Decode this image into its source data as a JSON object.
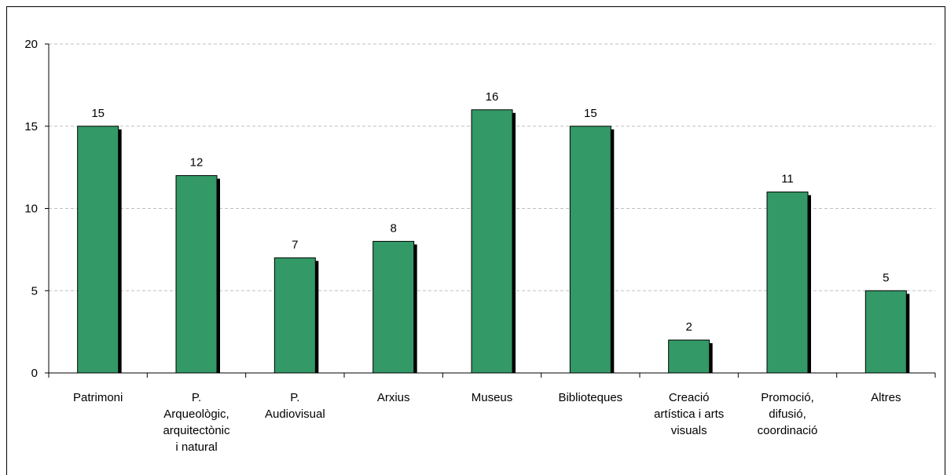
{
  "chart_data": {
    "type": "bar",
    "title": "",
    "xlabel": "",
    "ylabel": "",
    "ylim": [
      0,
      20
    ],
    "yticks": [
      0,
      5,
      10,
      15,
      20
    ],
    "grid": true,
    "legend": "none",
    "categories": [
      [
        "Patrimoni"
      ],
      [
        "P.",
        "Arqueològic,",
        "arquitectònic",
        "i natural"
      ],
      [
        "P.",
        "Audiovisual"
      ],
      [
        "Arxius"
      ],
      [
        "Museus"
      ],
      [
        "Biblioteques"
      ],
      [
        "Creació",
        "artística i arts",
        "visuals"
      ],
      [
        "Promoció,",
        "difusió,",
        "coordinació"
      ],
      [
        "Altres"
      ]
    ],
    "values": [
      15,
      12,
      7,
      8,
      16,
      15,
      2,
      11,
      5
    ],
    "colors": {
      "bar": "#339966",
      "shadow": "#000000",
      "grid": "#bfbfbf",
      "axis": "#000000"
    }
  }
}
